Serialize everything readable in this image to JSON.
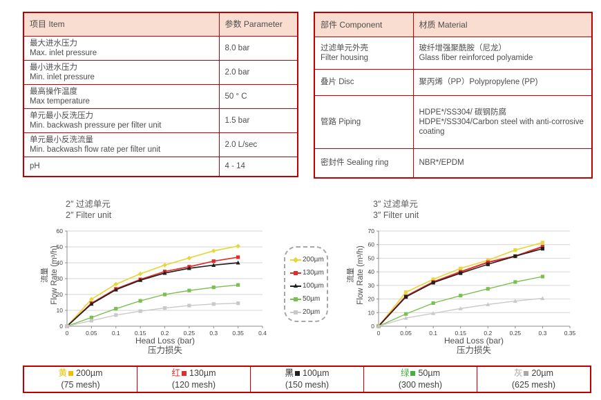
{
  "colors": {
    "border_red": "#c00000",
    "header_fill": "#f9ddd1",
    "text": "#4d4d4d"
  },
  "spec_table": {
    "headers": [
      "项目 Item",
      "参数 Parameter"
    ],
    "rows": [
      {
        "item": [
          "最大进水压力",
          "Max. inlet pressure"
        ],
        "value": "8.0 bar"
      },
      {
        "item": [
          "最小进水压力",
          "Min. inlet pressure"
        ],
        "value": "2.0 bar"
      },
      {
        "item": [
          "最高操作温度",
          "Max temperature"
        ],
        "value": "50 ° C"
      },
      {
        "item": [
          "单元最小反洗压力",
          "Min. backwash pressure per filter unit"
        ],
        "value": "1.5 bar"
      },
      {
        "item": [
          "单元最小反洗流量",
          "Min. backwash flow rate per filter unit"
        ],
        "value": "2.0 L/sec"
      },
      {
        "item": [
          "pH"
        ],
        "value": "4 - 14"
      }
    ]
  },
  "material_table": {
    "headers": [
      "部件 Component",
      "材质 Material"
    ],
    "rows": [
      {
        "component": [
          "过滤单元外壳",
          "Filter housing"
        ],
        "material": [
          "玻纤增强聚酰胺（尼龙）",
          "Glass fiber reinforced polyamide"
        ]
      },
      {
        "component": [
          "叠片 Disc"
        ],
        "material": [
          "聚丙烯（PP）Polypropylene (PP)"
        ]
      },
      {
        "component": [
          "管路 Piping"
        ],
        "material": [
          "HDPE*/SS304/ 碳钢防腐",
          "HDPE*/SS304/Carbon steel with anti-corrosive coating"
        ]
      },
      {
        "component": [
          "密封件 Sealing ring"
        ],
        "material": [
          "NBR*/EPDM"
        ]
      }
    ]
  },
  "chart_data": [
    {
      "type": "line",
      "title_zh": "2″ 过滤单元",
      "title_en": "2″ Filter unit",
      "ylabel_zh": "流量",
      "ylabel": "Flow Rate (m³/h)",
      "xlabel": "Head Loss (bar)",
      "xlabel_zh": "压力损失",
      "x": [
        0,
        0.05,
        0.1,
        0.15,
        0.2,
        0.25,
        0.3,
        0.35
      ],
      "xticks": [
        0,
        0.05,
        0.1,
        0.15,
        0.2,
        0.25,
        0.3,
        0.35,
        0.4
      ],
      "xlim": [
        0,
        0.4
      ],
      "ylim": [
        0,
        60
      ],
      "ystep": 10,
      "grid": "horizontal",
      "series": [
        {
          "name": "200µm",
          "color": "#e8d63c",
          "marker": "diamond",
          "lw": 1.7,
          "values": [
            0,
            17,
            26.5,
            33,
            38.5,
            43,
            47.5,
            50.5
          ]
        },
        {
          "name": "130µm",
          "color": "#e02d28",
          "marker": "square",
          "lw": 1.7,
          "values": [
            0,
            14.5,
            23.5,
            29.5,
            34.5,
            37.5,
            41,
            43.5
          ]
        },
        {
          "name": "100µm",
          "color": "#231f20",
          "marker": "triangle",
          "lw": 1.7,
          "values": [
            0,
            14,
            23,
            29,
            33.5,
            36.5,
            38.5,
            40
          ]
        },
        {
          "name": "50µm",
          "color": "#7ac04f",
          "marker": "square",
          "lw": 1.4,
          "values": [
            0,
            5.5,
            11,
            16,
            20,
            22.5,
            24.5,
            26
          ]
        },
        {
          "name": "20µm",
          "color": "#c9c9c9",
          "marker": "square",
          "lw": 1.4,
          "values": [
            0,
            3.5,
            7,
            9.5,
            11.5,
            13,
            14,
            14.5
          ]
        }
      ]
    },
    {
      "type": "line",
      "title_zh": "3″ 过滤单元",
      "title_en": "3″ Filter unit",
      "ylabel_zh": "流量",
      "ylabel": "Flow Rate (m³/h)",
      "xlabel": "Head Loss (bar)",
      "xlabel_zh": "压力损失",
      "x": [
        0,
        0.05,
        0.1,
        0.15,
        0.2,
        0.25,
        0.3
      ],
      "xticks": [
        0,
        0.05,
        0.1,
        0.15,
        0.2,
        0.25,
        0.3,
        0.35
      ],
      "xlim": [
        0,
        0.35
      ],
      "ylim": [
        0,
        70
      ],
      "ystep": 10,
      "grid": "horizontal",
      "series": [
        {
          "name": "200µm",
          "color": "#e8d63c",
          "marker": "square",
          "lw": 1.7,
          "values": [
            0,
            25,
            34.5,
            42.5,
            48.5,
            56,
            61.5
          ]
        },
        {
          "name": "130µm",
          "color": "#e02d28",
          "marker": "square",
          "lw": 2.2,
          "values": [
            0,
            22,
            32.5,
            40,
            47,
            51.5,
            58.5
          ]
        },
        {
          "name": "100µm",
          "color": "#231f20",
          "marker": "square",
          "lw": 1.5,
          "values": [
            0,
            21.5,
            32,
            39,
            45.5,
            51.5,
            57
          ]
        },
        {
          "name": "50µm",
          "color": "#7ac04f",
          "marker": "square",
          "lw": 1.4,
          "values": [
            0,
            9,
            17,
            22.5,
            27.5,
            32.5,
            36.5
          ]
        },
        {
          "name": "20µm",
          "color": "#c9c9c9",
          "marker": "triangle",
          "lw": 1.4,
          "values": [
            0,
            6,
            9.5,
            13,
            16,
            18.5,
            20.5
          ]
        }
      ]
    }
  ],
  "chart_legend": {
    "items": [
      {
        "label": "200µm",
        "color": "#e8d63c",
        "marker": "diamond"
      },
      {
        "label": "130µm",
        "color": "#e02d28",
        "marker": "square"
      },
      {
        "label": "100µm",
        "color": "#231f20",
        "marker": "triangle"
      },
      {
        "label": "50µm",
        "color": "#7ac04f",
        "marker": "square"
      },
      {
        "label": "20µm",
        "color": "#c9c9c9",
        "marker": "square"
      }
    ]
  },
  "bottom_legend": {
    "items": [
      {
        "cn": "黄",
        "size": "200µm",
        "mesh": "(75 mesh)",
        "color": "#f0c000"
      },
      {
        "cn": "红",
        "size": "130µm",
        "mesh": "(120 mesh)",
        "color": "#e02d28"
      },
      {
        "cn": "黑",
        "size": "100µm",
        "mesh": "(150 mesh)",
        "color": "#231f20"
      },
      {
        "cn": "绿",
        "size": "50µm",
        "mesh": "(300 mesh)",
        "color": "#44b13c"
      },
      {
        "cn": "灰",
        "size": "20µm",
        "mesh": "(625 mesh)",
        "color": "#a8a8a8"
      }
    ]
  }
}
